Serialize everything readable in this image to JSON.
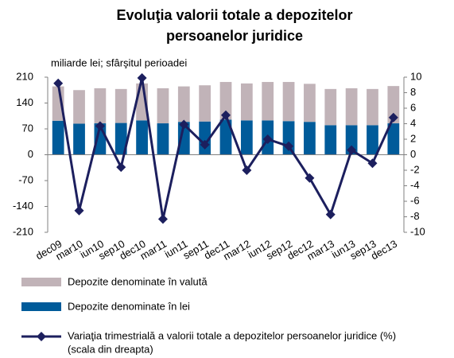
{
  "chart_data": {
    "type": "bar_line",
    "title": [
      "Evoluţia valorii totale a depozitelor",
      "persoanelor juridice"
    ],
    "subtitle": "miliarde lei; sfârşitul perioadei",
    "categories": [
      "dec09",
      "mar10",
      "iun10",
      "sep10",
      "dec10",
      "mar11",
      "iun11",
      "sep11",
      "dec11",
      "mar12",
      "iun12",
      "sep12",
      "dec12",
      "mar13",
      "iun13",
      "sep13",
      "dec13"
    ],
    "series": [
      {
        "name": "Depozite denominate în valută",
        "color": "#c1b3b8",
        "type": "bar",
        "values": [
          93,
          91,
          95,
          92,
          100,
          95,
          96,
          98,
          102,
          100,
          104,
          106,
          103,
          98,
          100,
          98,
          101
        ]
      },
      {
        "name": "Depozite denominate în lei",
        "color": "#005b9a",
        "type": "bar",
        "values": [
          92,
          84,
          85,
          86,
          93,
          85,
          89,
          90,
          95,
          93,
          93,
          91,
          89,
          80,
          80,
          80,
          85
        ]
      },
      {
        "name": "Variaţia trimestrială a valorii totale a depozitelor persoanelor juridice (%)",
        "color": "#1c1f5e",
        "type": "line",
        "axis": "y2",
        "values": [
          9.2,
          -7.2,
          3.7,
          -1.6,
          9.9,
          -8.3,
          3.9,
          1.3,
          5.1,
          -2.0,
          2.0,
          1.1,
          -3.0,
          -7.7,
          0.6,
          -1.1,
          4.8
        ]
      }
    ],
    "legend_note": "(scala din dreapta)",
    "ylim": [
      -210,
      210
    ],
    "yticks": [
      -210,
      -140,
      -70,
      0,
      70,
      140,
      210
    ],
    "y2lim": [
      -10,
      10
    ],
    "y2ticks": [
      -10,
      -8,
      -6,
      -4,
      -2,
      0,
      2,
      4,
      6,
      8,
      10
    ]
  }
}
